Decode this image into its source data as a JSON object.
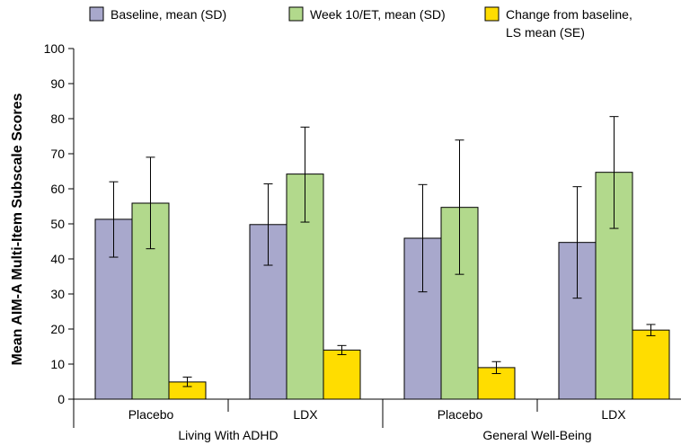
{
  "chart_data": {
    "type": "bar",
    "ylabel": "Mean AIM-A Multi-Item Subscale Scores",
    "ylim": [
      0,
      100
    ],
    "yticks": [
      0,
      10,
      20,
      30,
      40,
      50,
      60,
      70,
      80,
      90,
      100
    ],
    "grid": false,
    "legend_position": "top",
    "groups": [
      {
        "label": "Living With ADHD",
        "categories": [
          "Placebo",
          "LDX"
        ]
      },
      {
        "label": "General Well-Being",
        "categories": [
          "Placebo",
          "LDX"
        ]
      }
    ],
    "series": [
      {
        "name": "Baseline, mean (SD)",
        "color": "#a8a8cc",
        "values": [
          51.3,
          49.8,
          45.9,
          44.7
        ],
        "error_low": [
          40.5,
          38.2,
          30.6,
          28.8
        ],
        "error_high": [
          62.0,
          61.4,
          61.2,
          60.6
        ]
      },
      {
        "name": "Week 10/ET, mean (SD)",
        "color": "#b2d98c",
        "values": [
          55.9,
          64.2,
          54.7,
          64.7
        ],
        "error_low": [
          42.9,
          50.5,
          35.6,
          48.7
        ],
        "error_high": [
          69.0,
          77.6,
          73.9,
          80.6
        ]
      },
      {
        "name": "Change from baseline, LS mean (SE)",
        "name_lines": [
          "Change from baseline,",
          "LS mean (SE)"
        ],
        "color": "#ffdd00",
        "values": [
          4.9,
          14.0,
          9.0,
          19.7
        ],
        "error_low": [
          3.6,
          12.7,
          7.3,
          18.1
        ],
        "error_high": [
          6.3,
          15.3,
          10.7,
          21.3
        ]
      }
    ]
  }
}
